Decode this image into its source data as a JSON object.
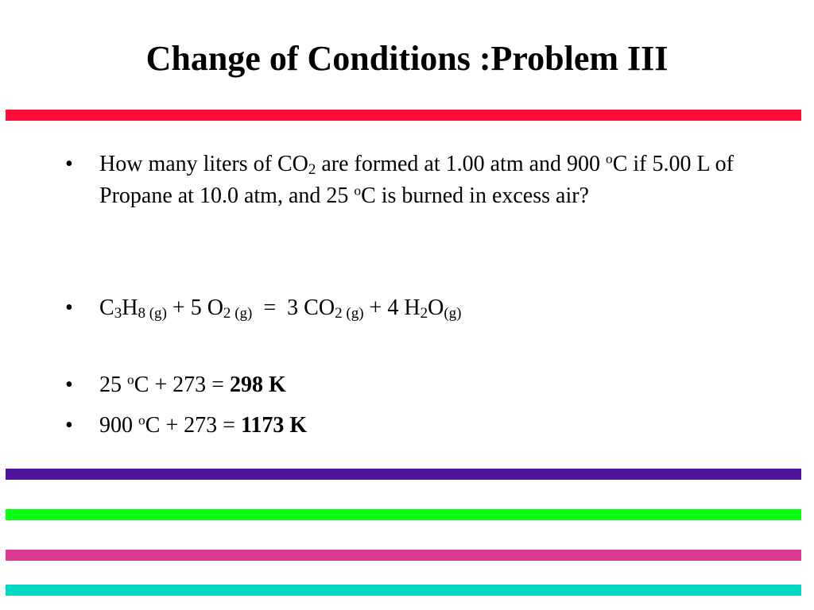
{
  "slide": {
    "title": "Change of Conditions :Problem III",
    "rules": {
      "red": "#ff0b3a",
      "purple": "#50139a",
      "green": "#0bff13",
      "pink": "#dd3b93",
      "cyan": "#00d9c4"
    }
  },
  "bullets": {
    "marker": "•",
    "question": {
      "t1": "How many liters of CO",
      "t1_sub": "2",
      "t2": " are formed at 1.00 atm and 900 ",
      "t2_sup": "o",
      "t3": "C if 5.00 L of Propane at 10.0 atm, and 25 ",
      "t3_sup": "o",
      "t4": "C is burned in excess air?"
    },
    "equation": {
      "c": "C",
      "c_sub": "3",
      "h": "H",
      "h_sub": "8 (g)",
      "plus_o2": " + 5 O",
      "o2_sub": "2 (g)",
      "equals_co2": "  =  3 CO",
      "co2_sub": "2 (g)",
      "plus_h2": " + 4 H",
      "h2_sub": "2",
      "o": "O",
      "o_sub": "(g)"
    },
    "temp1": {
      "pre": "25 ",
      "sup": "o",
      "mid": "C + 273 = ",
      "result": "298 K"
    },
    "temp2": {
      "pre": "900 ",
      "sup": "o",
      "mid": "C + 273 = ",
      "result": "1173 K"
    }
  }
}
